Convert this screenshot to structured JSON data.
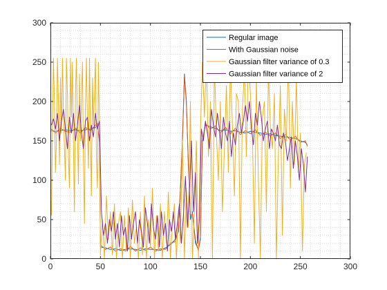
{
  "chart_data": {
    "type": "line",
    "title": "",
    "xlabel": "",
    "ylabel": "",
    "xlim": [
      0,
      300
    ],
    "ylim": [
      0,
      300
    ],
    "xticks": [
      0,
      50,
      100,
      150,
      200,
      250,
      300
    ],
    "yticks": [
      0,
      50,
      100,
      150,
      200,
      250,
      300
    ],
    "grid": "minor-dotted",
    "legend_position": "top-right",
    "series": [
      {
        "name": "Regular image",
        "color": "#0072BD",
        "x": [
          1,
          5,
          10,
          15,
          20,
          25,
          30,
          35,
          40,
          45,
          47,
          49,
          50,
          55,
          60,
          65,
          70,
          75,
          80,
          85,
          90,
          95,
          100,
          105,
          110,
          115,
          120,
          125,
          128,
          130,
          132,
          134,
          136,
          138,
          140,
          142,
          145,
          148,
          150,
          152,
          155,
          160,
          165,
          170,
          175,
          180,
          185,
          190,
          195,
          200,
          205,
          210,
          215,
          220,
          225,
          230,
          235,
          240,
          245,
          250,
          255,
          257
        ],
        "y": [
          163,
          162,
          163,
          164,
          163,
          164,
          163,
          164,
          165,
          167,
          170,
          150,
          15,
          14,
          12,
          13,
          11,
          12,
          13,
          12,
          11,
          13,
          12,
          12,
          11,
          14,
          18,
          25,
          35,
          90,
          150,
          235,
          200,
          120,
          50,
          60,
          20,
          12,
          25,
          150,
          170,
          168,
          166,
          163,
          164,
          162,
          163,
          161,
          160,
          162,
          161,
          160,
          158,
          159,
          157,
          156,
          155,
          154,
          153,
          150,
          148,
          145
        ]
      },
      {
        "name": "With Gaussian noise",
        "color": "#D95319",
        "x": [
          1,
          5,
          10,
          15,
          20,
          25,
          30,
          35,
          40,
          45,
          47,
          49,
          50,
          55,
          60,
          65,
          70,
          75,
          80,
          85,
          90,
          95,
          100,
          105,
          110,
          115,
          120,
          125,
          128,
          130,
          132,
          134,
          136,
          138,
          140,
          142,
          145,
          148,
          150,
          152,
          155,
          160,
          165,
          170,
          175,
          180,
          185,
          190,
          195,
          200,
          205,
          210,
          215,
          220,
          225,
          230,
          235,
          240,
          245,
          250,
          255,
          257
        ],
        "y": [
          165,
          160,
          166,
          162,
          161,
          166,
          160,
          167,
          163,
          170,
          172,
          148,
          18,
          12,
          15,
          10,
          13,
          10,
          16,
          10,
          14,
          11,
          15,
          10,
          13,
          12,
          20,
          22,
          38,
          88,
          152,
          232,
          198,
          118,
          55,
          58,
          24,
          10,
          28,
          148,
          172,
          165,
          169,
          160,
          167,
          159,
          166,
          158,
          163,
          159,
          164,
          157,
          161,
          156,
          160,
          153,
          158,
          151,
          156,
          148,
          150,
          143
        ]
      },
      {
        "name": "Gaussian filter variance of 0.3",
        "color": "#EDB120",
        "x": [
          1,
          2,
          3,
          4,
          5,
          6,
          7,
          8,
          9,
          10,
          11,
          12,
          13,
          14,
          15,
          16,
          17,
          18,
          19,
          20,
          21,
          22,
          23,
          24,
          25,
          26,
          27,
          28,
          29,
          30,
          31,
          32,
          33,
          34,
          35,
          36,
          37,
          38,
          39,
          40,
          41,
          42,
          43,
          44,
          45,
          46,
          47,
          48,
          49,
          50,
          52,
          54,
          56,
          58,
          60,
          62,
          64,
          66,
          68,
          70,
          72,
          74,
          76,
          78,
          80,
          82,
          84,
          86,
          88,
          90,
          92,
          94,
          96,
          98,
          100,
          102,
          104,
          106,
          108,
          110,
          112,
          114,
          116,
          118,
          120,
          122,
          124,
          126,
          128,
          130,
          132,
          134,
          136,
          138,
          140,
          142,
          144,
          146,
          148,
          150,
          152,
          154,
          156,
          158,
          160,
          162,
          164,
          166,
          168,
          170,
          172,
          174,
          176,
          178,
          180,
          182,
          184,
          186,
          188,
          190,
          192,
          194,
          196,
          198,
          200,
          202,
          204,
          206,
          208,
          210,
          212,
          214,
          216,
          218,
          220,
          222,
          224,
          226,
          228,
          230,
          232,
          234,
          236,
          238,
          240,
          242,
          244,
          246,
          248,
          250,
          252,
          254,
          256
        ],
        "y": [
          55,
          160,
          255,
          200,
          110,
          150,
          255,
          200,
          120,
          230,
          160,
          255,
          190,
          140,
          100,
          255,
          210,
          130,
          90,
          255,
          180,
          250,
          140,
          60,
          210,
          255,
          160,
          95,
          235,
          150,
          200,
          250,
          130,
          45,
          190,
          255,
          170,
          115,
          255,
          160,
          80,
          230,
          170,
          210,
          255,
          130,
          90,
          250,
          175,
          5,
          50,
          0,
          80,
          25,
          60,
          5,
          70,
          0,
          45,
          60,
          0,
          55,
          10,
          65,
          0,
          75,
          20,
          40,
          0,
          60,
          5,
          80,
          0,
          50,
          15,
          90,
          0,
          55,
          10,
          70,
          0,
          60,
          20,
          85,
          0,
          45,
          70,
          0,
          60,
          20,
          150,
          0,
          90,
          40,
          200,
          0,
          60,
          150,
          0,
          160,
          250,
          180,
          255,
          130,
          200,
          0,
          250,
          160,
          100,
          200,
          60,
          140,
          220,
          110,
          250,
          170,
          80,
          210,
          200,
          0,
          190,
          240,
          130,
          255,
          210,
          160,
          20,
          230,
          100,
          0,
          180,
          200,
          60,
          240,
          165,
          140,
          210,
          0,
          130,
          220,
          30,
          190,
          150,
          255,
          90,
          200,
          120,
          230,
          110,
          160,
          10,
          120,
          135
        ]
      },
      {
        "name": "Gaussian filter variance of 2",
        "color": "#7E2F8E",
        "x": [
          1,
          3,
          5,
          7,
          9,
          11,
          13,
          15,
          17,
          19,
          21,
          23,
          25,
          27,
          29,
          31,
          33,
          35,
          37,
          39,
          41,
          43,
          45,
          47,
          49,
          51,
          53,
          55,
          57,
          59,
          61,
          63,
          65,
          67,
          69,
          71,
          73,
          75,
          77,
          79,
          81,
          83,
          85,
          87,
          89,
          91,
          93,
          95,
          97,
          99,
          101,
          103,
          105,
          107,
          109,
          111,
          113,
          115,
          117,
          119,
          121,
          123,
          125,
          127,
          129,
          131,
          133,
          135,
          137,
          139,
          141,
          143,
          145,
          147,
          149,
          151,
          153,
          155,
          157,
          159,
          161,
          163,
          165,
          167,
          169,
          171,
          173,
          175,
          177,
          179,
          181,
          183,
          185,
          187,
          189,
          191,
          193,
          195,
          197,
          199,
          201,
          203,
          205,
          207,
          209,
          211,
          213,
          215,
          217,
          219,
          221,
          223,
          225,
          227,
          229,
          231,
          233,
          235,
          237,
          239,
          241,
          243,
          245,
          247,
          249,
          251,
          253,
          255,
          257
        ],
        "y": [
          170,
          178,
          165,
          185,
          150,
          175,
          190,
          165,
          140,
          180,
          160,
          185,
          150,
          170,
          195,
          160,
          140,
          175,
          180,
          150,
          170,
          155,
          185,
          165,
          175,
          60,
          30,
          45,
          20,
          50,
          35,
          60,
          25,
          45,
          15,
          55,
          30,
          40,
          10,
          55,
          25,
          45,
          60,
          20,
          50,
          35,
          15,
          65,
          45,
          20,
          70,
          40,
          25,
          55,
          15,
          60,
          30,
          45,
          10,
          50,
          35,
          60,
          25,
          45,
          70,
          20,
          55,
          105,
          40,
          85,
          150,
          60,
          110,
          20,
          50,
          165,
          150,
          175,
          160,
          140,
          190,
          170,
          155,
          185,
          165,
          140,
          180,
          160,
          150,
          175,
          130,
          160,
          145,
          170,
          185,
          160,
          175,
          195,
          175,
          200,
          165,
          145,
          185,
          170,
          200,
          180,
          150,
          165,
          175,
          140,
          165,
          160,
          150,
          170,
          145,
          140,
          160,
          150,
          125,
          140,
          155,
          115,
          150,
          130,
          100,
          140,
          120,
          85,
          130
        ]
      }
    ]
  }
}
